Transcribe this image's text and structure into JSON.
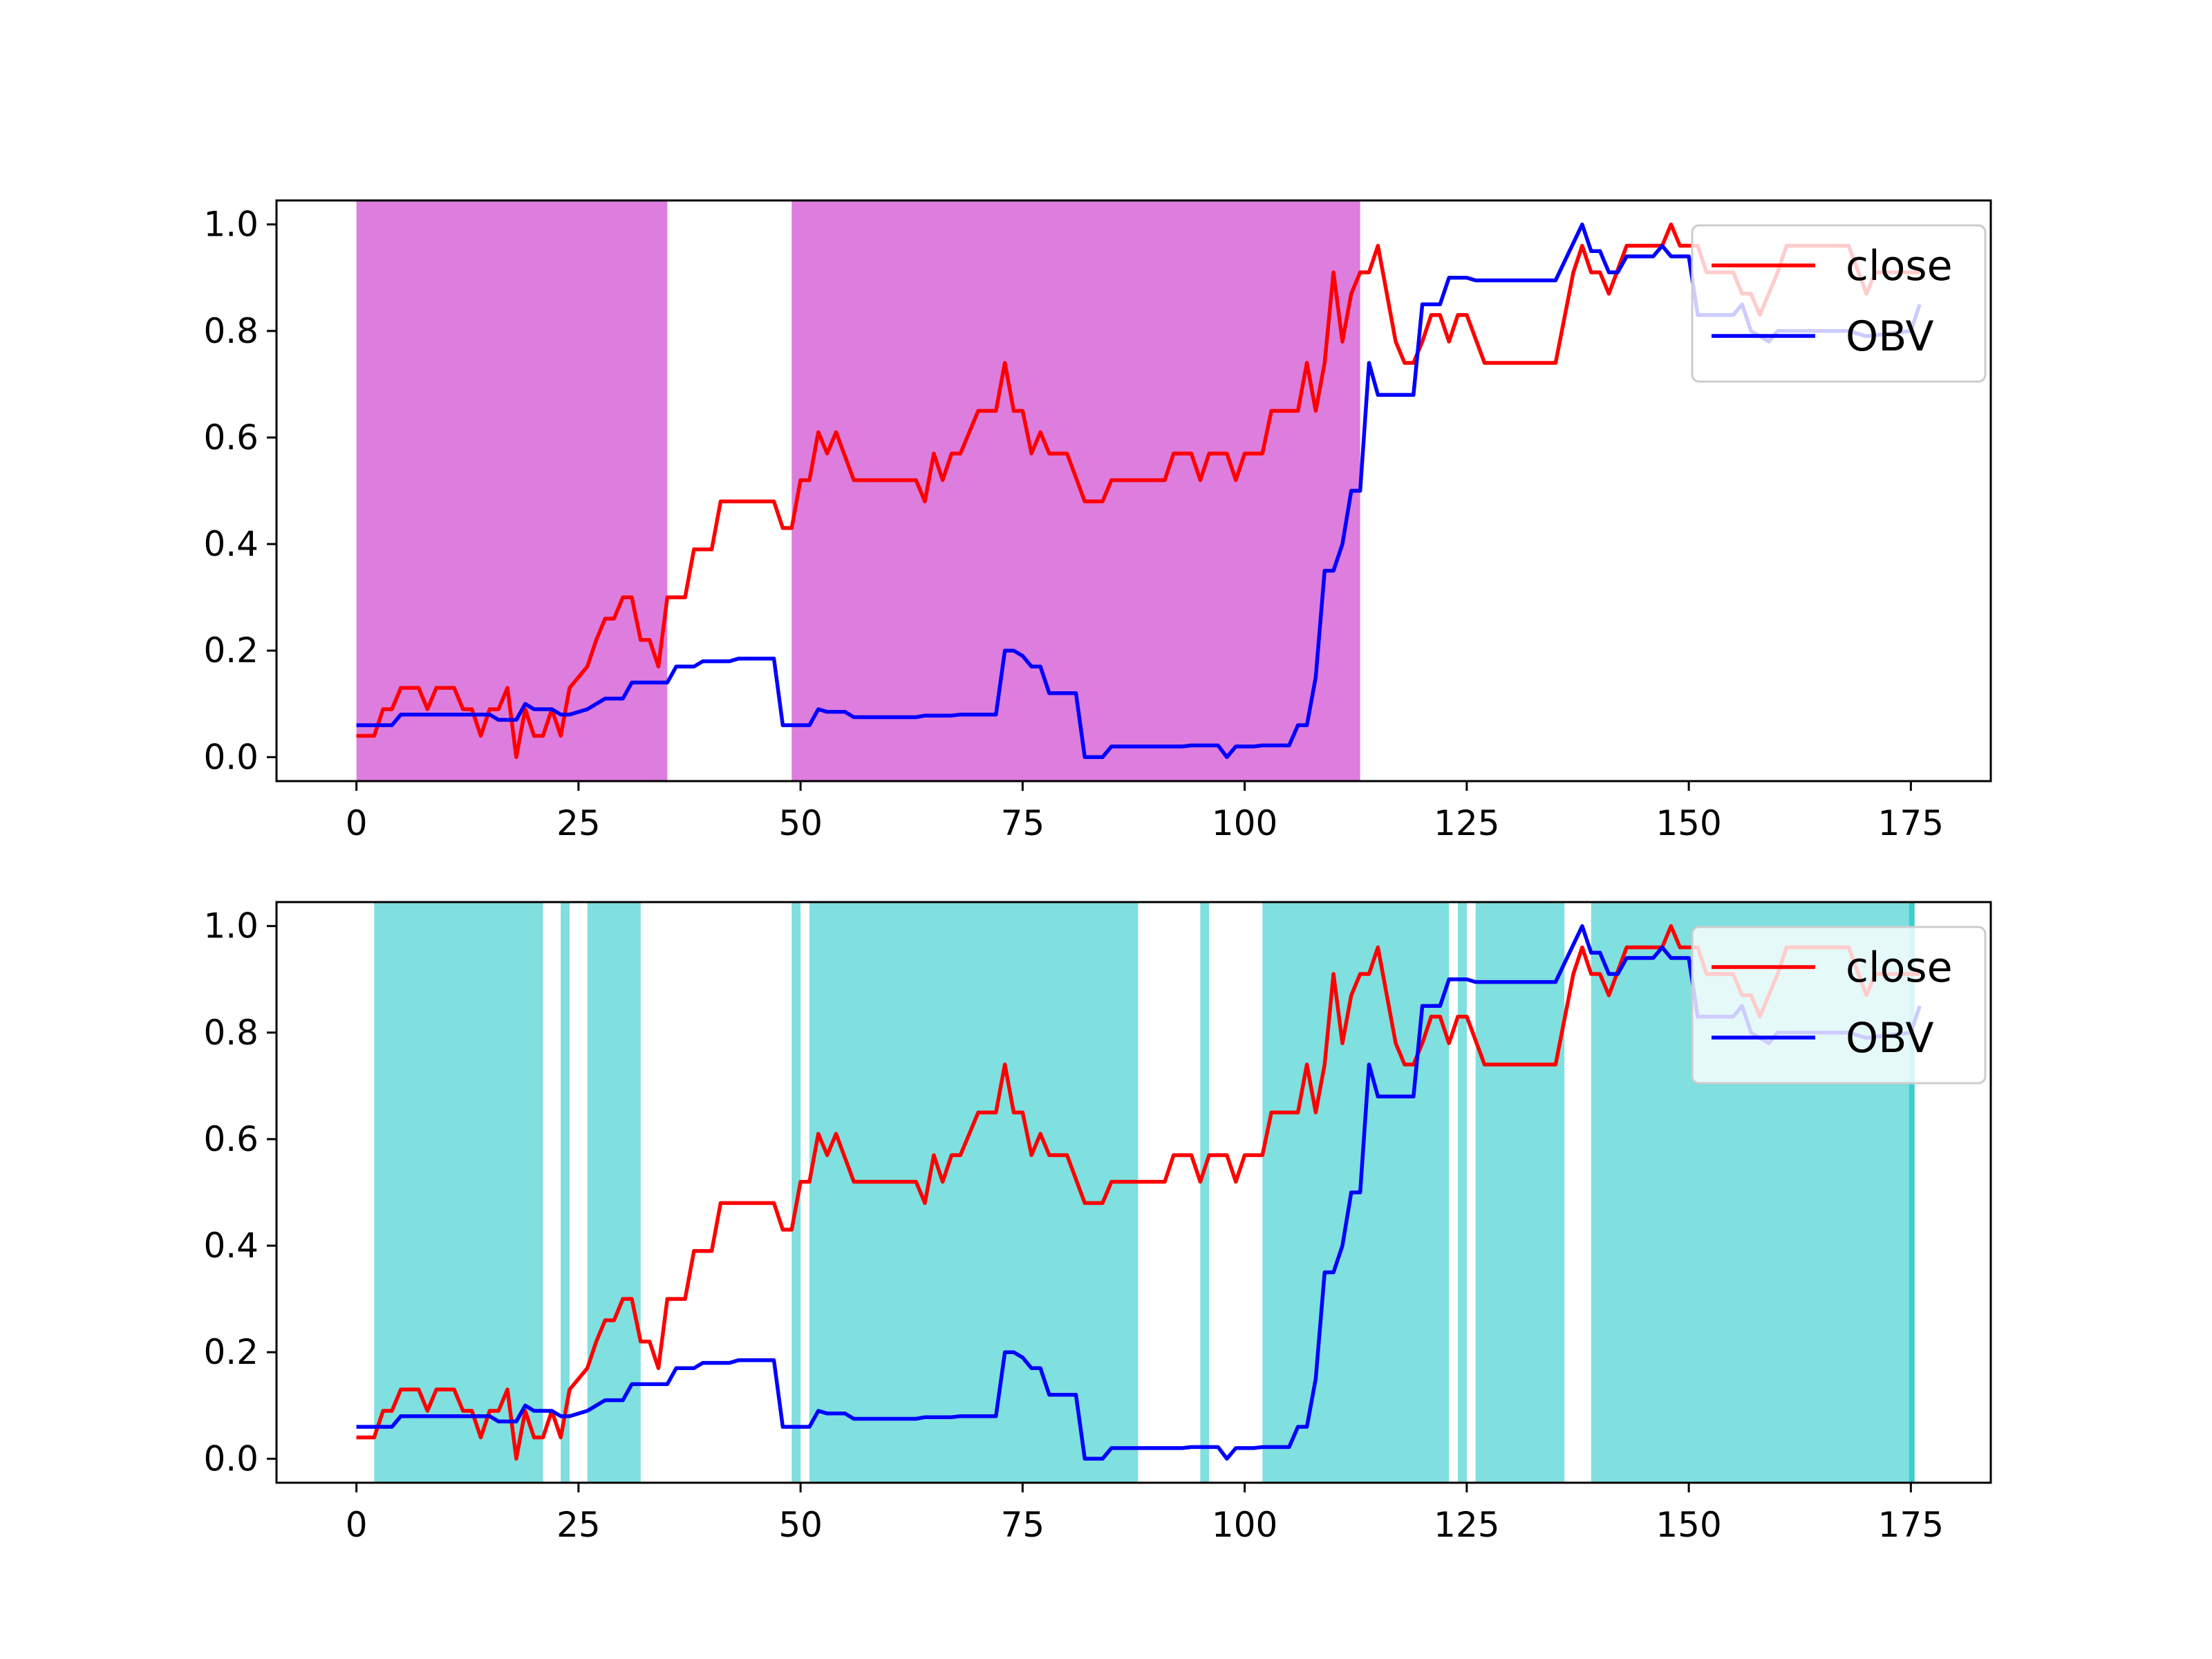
{
  "colors": {
    "close": "#ff0000",
    "obv": "#0000ff",
    "shade_top": "#dd7ddd",
    "shade_bottom": "#80dfdf",
    "shade_bottom_edge": "#40cccc"
  },
  "chart_data": [
    {
      "type": "line",
      "xlim": [
        -9,
        184
      ],
      "ylim": [
        -0.045,
        1.045
      ],
      "xticks": [
        0,
        25,
        50,
        75,
        100,
        125,
        150,
        175
      ],
      "yticks": [
        0.0,
        0.2,
        0.4,
        0.6,
        0.8,
        1.0
      ],
      "xtick_labels": [
        "0",
        "25",
        "50",
        "75",
        "100",
        "125",
        "150",
        "175"
      ],
      "ytick_labels": [
        "0.0",
        "0.2",
        "0.4",
        "0.6",
        "0.8",
        "1.0"
      ],
      "legend": {
        "position": "upper right",
        "entries": [
          "close",
          "OBV"
        ]
      },
      "grid": false,
      "shaded_spans": [
        [
          0,
          35
        ],
        [
          49,
          113
        ]
      ]
    },
    {
      "type": "line",
      "xlim": [
        -9,
        184
      ],
      "ylim": [
        -0.045,
        1.045
      ],
      "xticks": [
        0,
        25,
        50,
        75,
        100,
        125,
        150,
        175
      ],
      "yticks": [
        0.0,
        0.2,
        0.4,
        0.6,
        0.8,
        1.0
      ],
      "xtick_labels": [
        "0",
        "25",
        "50",
        "75",
        "100",
        "125",
        "150",
        "175"
      ],
      "ytick_labels": [
        "0.0",
        "0.2",
        "0.4",
        "0.6",
        "0.8",
        "1.0"
      ],
      "legend": {
        "position": "upper right",
        "entries": [
          "close",
          "OBV"
        ]
      },
      "grid": false,
      "shaded_spans": [
        [
          2,
          21
        ],
        [
          23,
          24
        ],
        [
          26,
          32
        ],
        [
          49,
          50
        ],
        [
          51,
          88
        ],
        [
          95,
          96
        ],
        [
          102,
          123
        ],
        [
          124,
          125
        ],
        [
          126,
          136
        ],
        [
          139,
          175
        ]
      ]
    }
  ],
  "series": [
    {
      "name": "close",
      "points": [
        [
          0,
          0.04
        ],
        [
          2,
          0.04
        ],
        [
          3,
          0.09
        ],
        [
          4,
          0.09
        ],
        [
          5,
          0.13
        ],
        [
          7,
          0.13
        ],
        [
          8,
          0.09
        ],
        [
          9,
          0.13
        ],
        [
          11,
          0.13
        ],
        [
          12,
          0.09
        ],
        [
          13,
          0.09
        ],
        [
          14,
          0.04
        ],
        [
          15,
          0.09
        ],
        [
          16,
          0.09
        ],
        [
          17,
          0.13
        ],
        [
          18,
          0.0
        ],
        [
          19,
          0.09
        ],
        [
          20,
          0.04
        ],
        [
          21,
          0.04
        ],
        [
          22,
          0.09
        ],
        [
          23,
          0.04
        ],
        [
          24,
          0.13
        ],
        [
          26,
          0.17
        ],
        [
          27,
          0.22
        ],
        [
          28,
          0.26
        ],
        [
          29,
          0.26
        ],
        [
          30,
          0.3
        ],
        [
          31,
          0.3
        ],
        [
          32,
          0.22
        ],
        [
          33,
          0.22
        ],
        [
          34,
          0.17
        ],
        [
          35,
          0.3
        ],
        [
          37,
          0.3
        ],
        [
          38,
          0.39
        ],
        [
          40,
          0.39
        ],
        [
          41,
          0.48
        ],
        [
          47,
          0.48
        ],
        [
          48,
          0.43
        ],
        [
          49,
          0.43
        ],
        [
          50,
          0.52
        ],
        [
          51,
          0.52
        ],
        [
          52,
          0.61
        ],
        [
          53,
          0.57
        ],
        [
          54,
          0.61
        ],
        [
          56,
          0.52
        ],
        [
          63,
          0.52
        ],
        [
          64,
          0.48
        ],
        [
          65,
          0.57
        ],
        [
          66,
          0.52
        ],
        [
          67,
          0.57
        ],
        [
          68,
          0.57
        ],
        [
          69,
          0.61
        ],
        [
          70,
          0.65
        ],
        [
          72,
          0.65
        ],
        [
          73,
          0.74
        ],
        [
          74,
          0.65
        ],
        [
          75,
          0.65
        ],
        [
          76,
          0.57
        ],
        [
          77,
          0.61
        ],
        [
          78,
          0.57
        ],
        [
          80,
          0.57
        ],
        [
          82,
          0.48
        ],
        [
          84,
          0.48
        ],
        [
          85,
          0.52
        ],
        [
          91,
          0.52
        ],
        [
          92,
          0.57
        ],
        [
          94,
          0.57
        ],
        [
          95,
          0.52
        ],
        [
          96,
          0.57
        ],
        [
          98,
          0.57
        ],
        [
          99,
          0.52
        ],
        [
          100,
          0.57
        ],
        [
          102,
          0.57
        ],
        [
          103,
          0.65
        ],
        [
          106,
          0.65
        ],
        [
          107,
          0.74
        ],
        [
          108,
          0.65
        ],
        [
          109,
          0.74
        ],
        [
          110,
          0.91
        ],
        [
          111,
          0.78
        ],
        [
          112,
          0.87
        ],
        [
          113,
          0.91
        ],
        [
          114,
          0.91
        ],
        [
          115,
          0.96
        ],
        [
          117,
          0.78
        ],
        [
          118,
          0.74
        ],
        [
          119,
          0.74
        ],
        [
          120,
          0.78
        ],
        [
          121,
          0.83
        ],
        [
          122,
          0.83
        ],
        [
          123,
          0.78
        ],
        [
          124,
          0.83
        ],
        [
          125,
          0.83
        ],
        [
          127,
          0.74
        ],
        [
          135,
          0.74
        ],
        [
          137,
          0.91
        ],
        [
          138,
          0.96
        ],
        [
          139,
          0.91
        ],
        [
          140,
          0.91
        ],
        [
          141,
          0.87
        ],
        [
          143,
          0.96
        ],
        [
          147,
          0.96
        ],
        [
          148,
          1.0
        ],
        [
          149,
          0.96
        ],
        [
          151,
          0.96
        ],
        [
          152,
          0.91
        ],
        [
          155,
          0.91
        ],
        [
          156,
          0.87
        ],
        [
          157,
          0.87
        ],
        [
          158,
          0.83
        ],
        [
          160,
          0.91
        ],
        [
          161,
          0.96
        ],
        [
          168,
          0.96
        ],
        [
          170,
          0.87
        ],
        [
          171,
          0.91
        ],
        [
          176,
          0.91
        ]
      ]
    },
    {
      "name": "OBV",
      "points": [
        [
          0,
          0.06
        ],
        [
          4,
          0.06
        ],
        [
          5,
          0.08
        ],
        [
          15,
          0.08
        ],
        [
          16,
          0.07
        ],
        [
          18,
          0.07
        ],
        [
          19,
          0.1
        ],
        [
          20,
          0.09
        ],
        [
          22,
          0.09
        ],
        [
          23,
          0.08
        ],
        [
          24,
          0.08
        ],
        [
          26,
          0.09
        ],
        [
          28,
          0.11
        ],
        [
          30,
          0.11
        ],
        [
          31,
          0.14
        ],
        [
          35,
          0.14
        ],
        [
          36,
          0.17
        ],
        [
          38,
          0.17
        ],
        [
          39,
          0.18
        ],
        [
          42,
          0.18
        ],
        [
          43,
          0.185
        ],
        [
          47,
          0.185
        ],
        [
          48,
          0.06
        ],
        [
          51,
          0.06
        ],
        [
          52,
          0.09
        ],
        [
          53,
          0.085
        ],
        [
          55,
          0.085
        ],
        [
          56,
          0.075
        ],
        [
          63,
          0.075
        ],
        [
          64,
          0.078
        ],
        [
          67,
          0.078
        ],
        [
          68,
          0.08
        ],
        [
          72,
          0.08
        ],
        [
          73,
          0.2
        ],
        [
          74,
          0.2
        ],
        [
          75,
          0.19
        ],
        [
          76,
          0.17
        ],
        [
          77,
          0.17
        ],
        [
          78,
          0.12
        ],
        [
          81,
          0.12
        ],
        [
          82,
          0.0
        ],
        [
          84,
          0.0
        ],
        [
          85,
          0.02
        ],
        [
          93,
          0.02
        ],
        [
          94,
          0.022
        ],
        [
          97,
          0.022
        ],
        [
          98,
          0.0
        ],
        [
          99,
          0.02
        ],
        [
          101,
          0.02
        ],
        [
          102,
          0.022
        ],
        [
          105,
          0.022
        ],
        [
          106,
          0.06
        ],
        [
          107,
          0.06
        ],
        [
          108,
          0.15
        ],
        [
          109,
          0.35
        ],
        [
          110,
          0.35
        ],
        [
          111,
          0.4
        ],
        [
          112,
          0.5
        ],
        [
          113,
          0.5
        ],
        [
          114,
          0.74
        ],
        [
          115,
          0.68
        ],
        [
          119,
          0.68
        ],
        [
          120,
          0.85
        ],
        [
          122,
          0.85
        ],
        [
          123,
          0.9
        ],
        [
          124,
          0.9
        ],
        [
          125,
          0.9
        ],
        [
          126,
          0.895
        ],
        [
          135,
          0.895
        ],
        [
          136,
          0.93
        ],
        [
          138,
          1.0
        ],
        [
          139,
          0.95
        ],
        [
          140,
          0.95
        ],
        [
          141,
          0.91
        ],
        [
          142,
          0.91
        ],
        [
          143,
          0.94
        ],
        [
          146,
          0.94
        ],
        [
          147,
          0.96
        ],
        [
          148,
          0.94
        ],
        [
          150,
          0.94
        ],
        [
          151,
          0.83
        ],
        [
          155,
          0.83
        ],
        [
          156,
          0.85
        ],
        [
          157,
          0.8
        ],
        [
          159,
          0.78
        ],
        [
          160,
          0.8
        ],
        [
          168,
          0.8
        ],
        [
          170,
          0.79
        ],
        [
          175,
          0.8
        ],
        [
          176,
          0.85
        ]
      ]
    }
  ]
}
